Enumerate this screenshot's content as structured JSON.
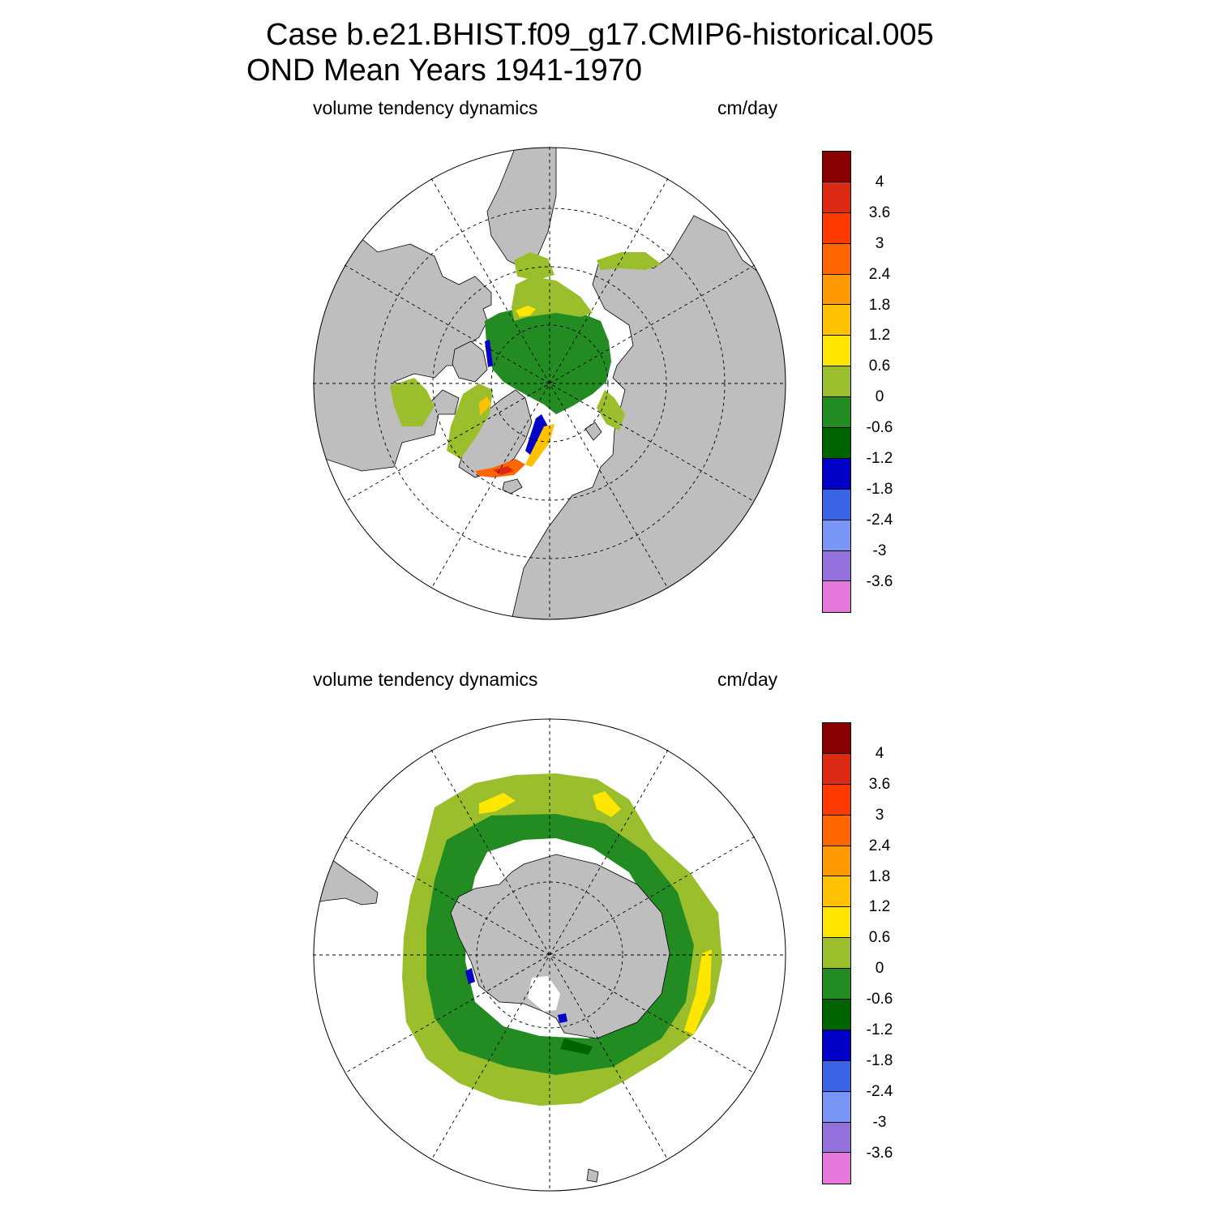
{
  "title": {
    "line1": "Case b.e21.BHIST.f09_g17.CMIP6-historical.005",
    "line2": "OND Mean   Years 1941-1970"
  },
  "panels": [
    {
      "variable": "volume tendency dynamics",
      "units": "cm/day"
    },
    {
      "variable": "volume tendency dynamics",
      "units": "cm/day"
    }
  ],
  "colorbar": {
    "colors": [
      "#8b0000",
      "#dc2a14",
      "#ff3a00",
      "#ff6600",
      "#ff9900",
      "#ffc200",
      "#ffe600",
      "#9bbe2d",
      "#228b22",
      "#006400",
      "#0000c8",
      "#3c64e6",
      "#7896f5",
      "#9370db",
      "#e678dc"
    ],
    "labels": [
      "4",
      "3.6",
      "3",
      "2.4",
      "1.8",
      "1.2",
      "0.6",
      "0",
      "-0.6",
      "-1.2",
      "-1.8",
      "-2.4",
      "-3",
      "-3.6"
    ]
  },
  "map_colors": {
    "land": "#bebebe",
    "ocean": "#ffffff",
    "grid": "#000000"
  }
}
